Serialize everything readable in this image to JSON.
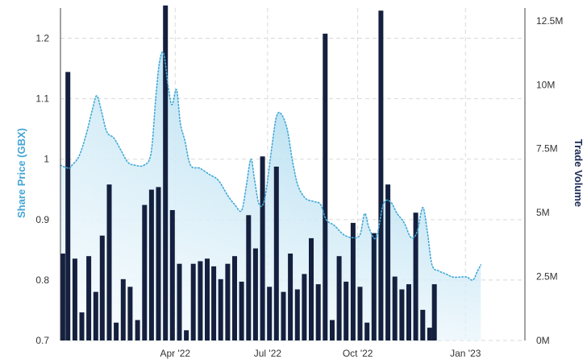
{
  "chart_data": {
    "type": "bar",
    "y_left_label": "Share Price (GBX)",
    "y_right_label": "Trade Volume",
    "y_left_ticks": [
      "0.7",
      "0.8",
      "0.9",
      "1",
      "1.1",
      "1.2"
    ],
    "y_left_tick_values": [
      0.7,
      0.8,
      0.9,
      1.0,
      1.1,
      1.2
    ],
    "y_left_range": [
      0.7,
      1.25
    ],
    "y_right_ticks": [
      "0M",
      "2.5M",
      "5M",
      "7.5M",
      "10M",
      "12.5M"
    ],
    "y_right_tick_values": [
      0,
      2.5,
      5,
      7.5,
      10,
      12.5
    ],
    "y_right_range": [
      0,
      13.0
    ],
    "x_ticks": [
      {
        "label": "Apr '22",
        "pos": 0.247
      },
      {
        "label": "Jul '22",
        "pos": 0.446
      },
      {
        "label": "Oct '22",
        "pos": 0.64
      },
      {
        "label": "Jan '23",
        "pos": 0.872
      }
    ],
    "grid": "dashed",
    "colors": {
      "price_line": "#3fa8d6",
      "price_area_top": "#7cc5e6",
      "price_area_bottom": "#e8f5fb",
      "bars": "#15203f",
      "left_title": "#45a6d4",
      "right_title": "#1b2b55",
      "grid": "#d9d9d9"
    },
    "price_series": {
      "name": "Share Price",
      "points": [
        [
          0.0,
          0.99
        ],
        [
          0.018,
          0.985
        ],
        [
          0.025,
          0.99
        ],
        [
          0.04,
          1.005
        ],
        [
          0.055,
          1.04
        ],
        [
          0.068,
          1.08
        ],
        [
          0.078,
          1.105
        ],
        [
          0.088,
          1.08
        ],
        [
          0.1,
          1.045
        ],
        [
          0.115,
          1.035
        ],
        [
          0.13,
          1.015
        ],
        [
          0.145,
          0.995
        ],
        [
          0.16,
          0.99
        ],
        [
          0.18,
          0.99
        ],
        [
          0.195,
          1.01
        ],
        [
          0.205,
          1.1
        ],
        [
          0.213,
          1.16
        ],
        [
          0.222,
          1.175
        ],
        [
          0.232,
          1.12
        ],
        [
          0.24,
          1.09
        ],
        [
          0.25,
          1.115
        ],
        [
          0.258,
          1.06
        ],
        [
          0.268,
          1.03
        ],
        [
          0.28,
          0.99
        ],
        [
          0.3,
          0.985
        ],
        [
          0.32,
          0.975
        ],
        [
          0.34,
          0.965
        ],
        [
          0.36,
          0.94
        ],
        [
          0.375,
          0.925
        ],
        [
          0.39,
          0.915
        ],
        [
          0.4,
          0.955
        ],
        [
          0.41,
          1.0
        ],
        [
          0.418,
          0.965
        ],
        [
          0.428,
          0.925
        ],
        [
          0.44,
          0.935
        ],
        [
          0.455,
          1.02
        ],
        [
          0.465,
          1.07
        ],
        [
          0.475,
          1.075
        ],
        [
          0.488,
          1.05
        ],
        [
          0.5,
          0.995
        ],
        [
          0.512,
          0.955
        ],
        [
          0.528,
          0.935
        ],
        [
          0.545,
          0.93
        ],
        [
          0.56,
          0.925
        ],
        [
          0.572,
          0.9
        ],
        [
          0.59,
          0.89
        ],
        [
          0.61,
          0.875
        ],
        [
          0.63,
          0.87
        ],
        [
          0.645,
          0.875
        ],
        [
          0.655,
          0.91
        ],
        [
          0.665,
          0.885
        ],
        [
          0.68,
          0.87
        ],
        [
          0.695,
          0.925
        ],
        [
          0.71,
          0.93
        ],
        [
          0.725,
          0.91
        ],
        [
          0.74,
          0.895
        ],
        [
          0.755,
          0.87
        ],
        [
          0.768,
          0.88
        ],
        [
          0.78,
          0.92
        ],
        [
          0.79,
          0.88
        ],
        [
          0.8,
          0.825
        ],
        [
          0.815,
          0.815
        ],
        [
          0.83,
          0.81
        ],
        [
          0.845,
          0.805
        ],
        [
          0.86,
          0.805
        ],
        [
          0.875,
          0.805
        ],
        [
          0.888,
          0.8
        ],
        [
          0.898,
          0.815
        ],
        [
          0.905,
          0.825
        ]
      ]
    },
    "volume_series": {
      "name": "Trade Volume",
      "bars": [
        [
          0.005,
          3.4
        ],
        [
          0.016,
          10.5
        ],
        [
          0.031,
          3.2
        ],
        [
          0.046,
          1.1
        ],
        [
          0.061,
          3.3
        ],
        [
          0.076,
          1.9
        ],
        [
          0.09,
          4.1
        ],
        [
          0.105,
          6.1
        ],
        [
          0.12,
          0.7
        ],
        [
          0.135,
          2.4
        ],
        [
          0.15,
          2.1
        ],
        [
          0.166,
          0.8
        ],
        [
          0.181,
          5.3
        ],
        [
          0.196,
          5.9
        ],
        [
          0.211,
          6.0
        ],
        [
          0.226,
          13.1
        ],
        [
          0.241,
          5.1
        ],
        [
          0.256,
          3.0
        ],
        [
          0.271,
          0.4
        ],
        [
          0.286,
          3.0
        ],
        [
          0.301,
          3.1
        ],
        [
          0.316,
          3.2
        ],
        [
          0.33,
          2.9
        ],
        [
          0.345,
          2.4
        ],
        [
          0.36,
          3.0
        ],
        [
          0.375,
          3.3
        ],
        [
          0.39,
          2.3
        ],
        [
          0.405,
          4.9
        ],
        [
          0.42,
          3.6
        ],
        [
          0.435,
          7.2
        ],
        [
          0.45,
          2.1
        ],
        [
          0.465,
          6.8
        ],
        [
          0.48,
          1.9
        ],
        [
          0.495,
          3.4
        ],
        [
          0.51,
          2.0
        ],
        [
          0.525,
          2.6
        ],
        [
          0.54,
          4.0
        ],
        [
          0.555,
          2.2
        ],
        [
          0.57,
          12.0
        ],
        [
          0.585,
          0.8
        ],
        [
          0.6,
          3.3
        ],
        [
          0.615,
          2.3
        ],
        [
          0.63,
          4.6
        ],
        [
          0.645,
          2.1
        ],
        [
          0.66,
          0.7
        ],
        [
          0.675,
          4.2
        ],
        [
          0.69,
          12.9
        ],
        [
          0.705,
          6.1
        ],
        [
          0.72,
          2.5
        ],
        [
          0.735,
          2.0
        ],
        [
          0.75,
          2.2
        ],
        [
          0.765,
          5.0
        ],
        [
          0.78,
          1.2
        ],
        [
          0.795,
          0.5
        ],
        [
          0.805,
          2.2
        ]
      ]
    }
  }
}
